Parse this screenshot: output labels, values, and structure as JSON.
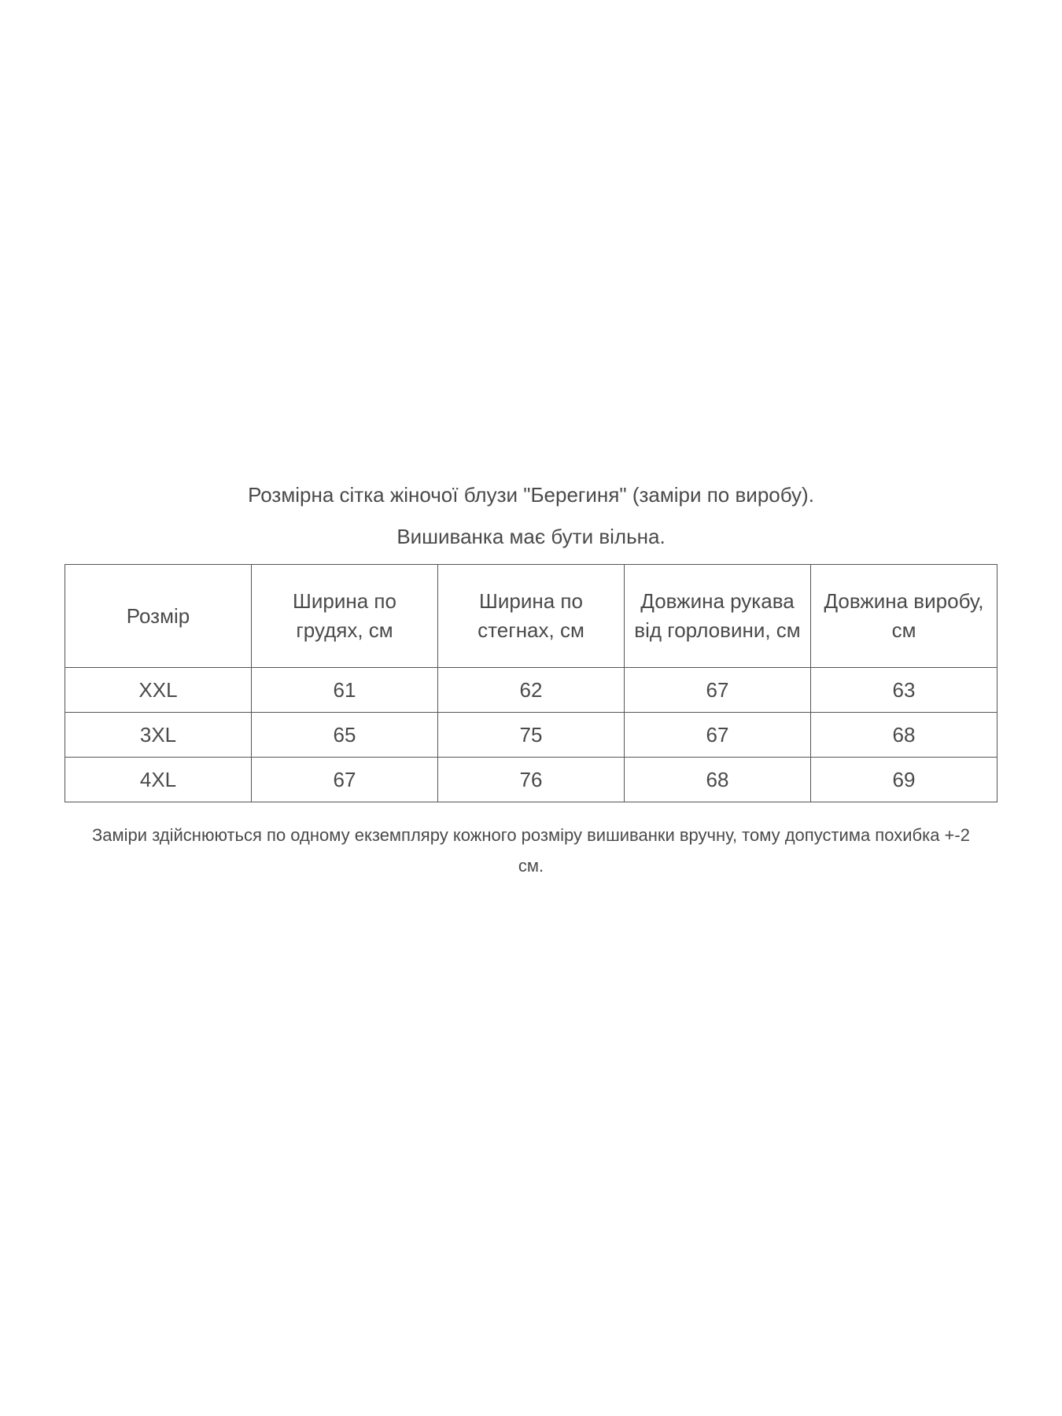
{
  "title": "Розмірна сітка жіночої блузи \"Берегиня\" (заміри по виробу).",
  "subtitle": "Вишиванка має бути вільна.",
  "table": {
    "headers": [
      "Розмір",
      "Ширина по грудях, см",
      "Ширина по стегнах, см",
      "Довжина рукава від горловини, см",
      "Довжина виробу, см"
    ],
    "rows": [
      [
        "XXL",
        "61",
        "62",
        "67",
        "63"
      ],
      [
        "3XL",
        "65",
        "75",
        "67",
        "68"
      ],
      [
        "4XL",
        "67",
        "76",
        "68",
        "69"
      ]
    ]
  },
  "note": "Заміри здійснюються  по одному екземпляру кожного розміру вишиванки вручну, тому допустима похибка +-2 см."
}
